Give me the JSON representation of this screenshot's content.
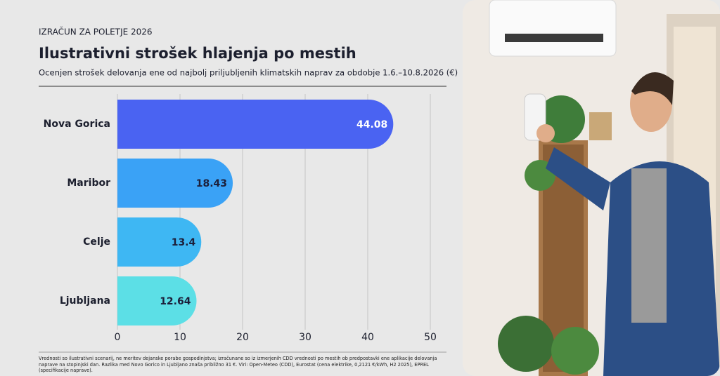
{
  "kicker": "IZRAČUN ZA POLETJE 2026",
  "chart_data": {
    "type": "hbar",
    "title": "Ilustrativni strošek hlajenja po mestih",
    "subtitle": "Ocenjen strošek delovanja ene od najbolj priljubljenih klimatskih naprav za obdobje 1.6.–10.8.2026 (€)",
    "categories": [
      "Nova Gorica",
      "Maribor",
      "Celje",
      "Ljubljana"
    ],
    "values": [
      44.08,
      18.43,
      13.4,
      12.64
    ],
    "colors": [
      "#4a63f2",
      "#3aa2f6",
      "#3eb7f3",
      "#5cdfe6"
    ],
    "xlim": [
      0,
      50
    ],
    "xticks": [
      0,
      10,
      20,
      30,
      40,
      50
    ],
    "grid": true
  },
  "footnote": "Vrednosti so ilustrativni scenarij, ne meritev dejanske porabe gospodinjstva; izračunane so iz izmerjenih CDD vrednosti po mestih ob predpostavki ene aplikacije delovanja naprave na stopinjski dan. Razlika med Novo Gorico in Ljubljano znaša približno 31 €. Viri: Open-Meteo (CDD), Eurostat (cena elektrike, 0,2121 €/kWh, H2 2025), EPREL (specifikacije naprave)."
}
